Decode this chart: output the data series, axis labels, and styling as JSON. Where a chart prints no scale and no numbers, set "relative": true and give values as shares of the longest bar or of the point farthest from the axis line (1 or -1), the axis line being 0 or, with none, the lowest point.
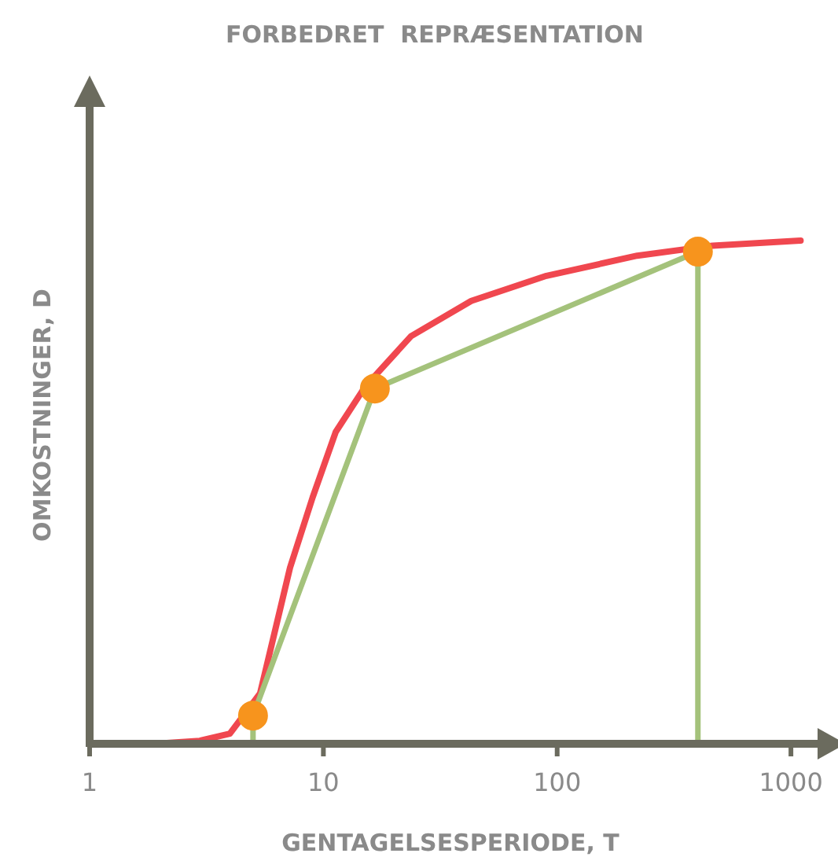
{
  "chart_data": {
    "type": "line",
    "title": "FORBEDRET  REPRÆSENTATION",
    "xlabel": "GENTAGELSESPERIODE, T",
    "ylabel": "OMKOSTNINGER, D",
    "relative": true,
    "log": "x",
    "xlim": [
      1,
      1300
    ],
    "xticks": [
      1,
      10,
      100,
      1000
    ],
    "grid": false,
    "series": [
      {
        "color": "#f0474f",
        "marker": "none",
        "x": [
          1.9,
          2.96,
          3.98,
          5.36,
          7.2,
          9.0,
          11.3,
          15.1,
          23.7,
          42.9,
          90,
          220,
          462,
          1100
        ],
        "values": [
          0,
          0.006,
          0.02,
          0.1,
          0.35,
          0.49,
          0.62,
          0.71,
          0.81,
          0.88,
          0.93,
          0.97,
          0.99,
          1.0
        ]
      },
      {
        "color": "#a4c27b",
        "marker": "circle",
        "x": [
          5,
          5,
          16.6,
          400,
          400
        ],
        "values": [
          0,
          0.056,
          0.706,
          0.978,
          0
        ]
      }
    ]
  }
}
